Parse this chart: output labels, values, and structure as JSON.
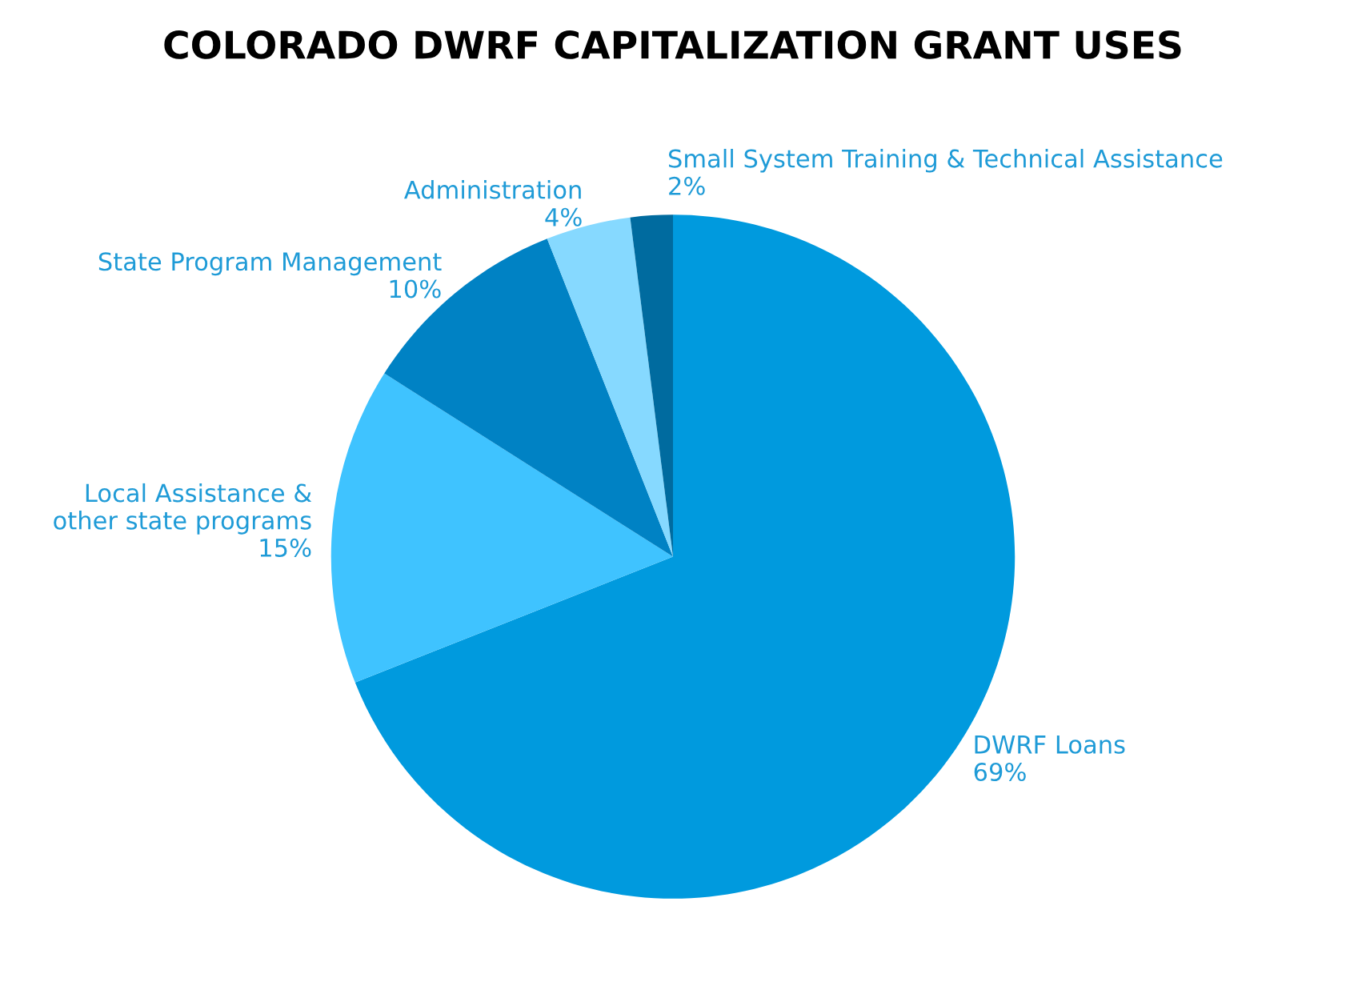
{
  "chart_data": {
    "type": "pie",
    "title": "COLORADO DWRF CAPITALIZATION GRANT USES",
    "categories": [
      "DWRF Loans",
      "Local Assistance &\nother state programs",
      "State Program Management",
      "Administration",
      "Small System Training & Technical Assistance"
    ],
    "values": [
      69,
      15,
      10,
      4,
      2
    ],
    "value_labels": [
      "69%",
      "15%",
      "10%",
      "4%",
      "2%"
    ],
    "colors": [
      "#009ade",
      "#3fc3ff",
      "#0082c4",
      "#86d9ff",
      "#006b9f"
    ]
  }
}
